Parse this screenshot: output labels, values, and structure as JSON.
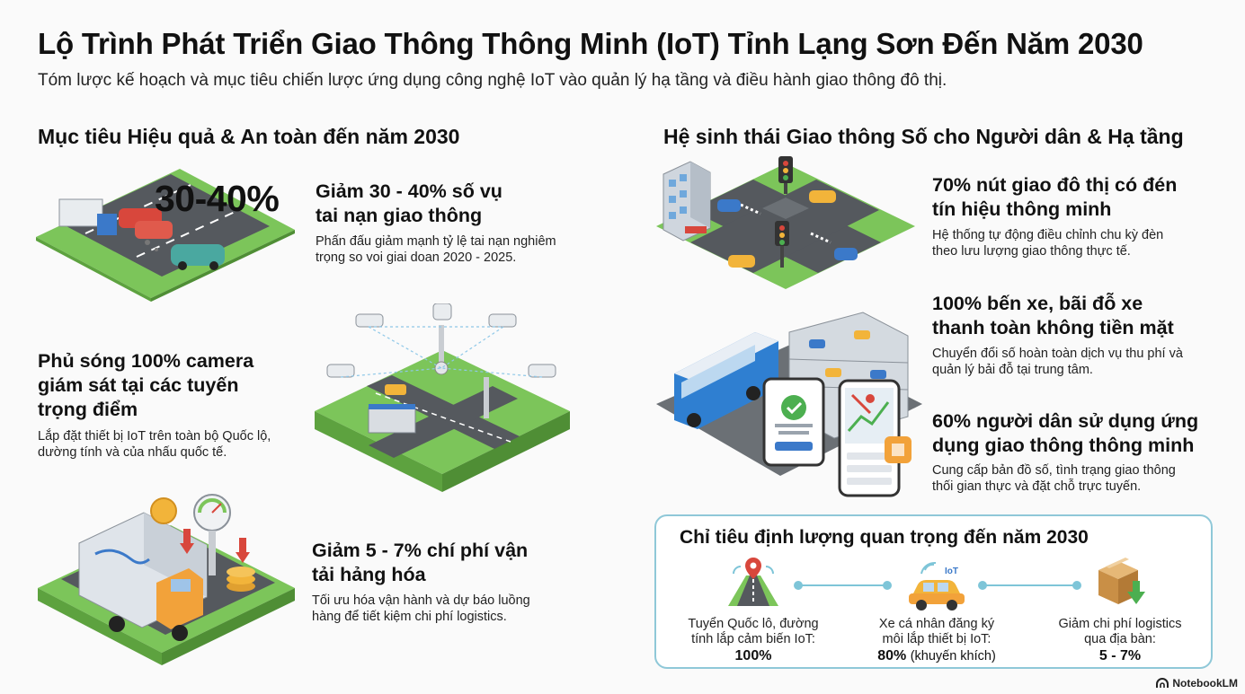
{
  "header": {
    "title": "Lộ Trình Phát Triển Giao Thông Thông Minh (IoT) Tỉnh Lạng Sơn Đến Năm 2030",
    "subtitle": "Tóm lược kế hoạch và mục tiêu chiến lược ứng dụng công nghệ IoT vào quản lý hạ tầng và điều hành giao thông đô thị."
  },
  "left_section": {
    "heading": "Mục tiêu Hiệu quả & An toàn đến năm 2030",
    "accident": {
      "big_number": "30-40%",
      "title_line1": "Giảm 30 - 40% số vụ",
      "title_line2": "tai nạn giao thông",
      "desc_line1": "Phấn đấu giảm mạnh tỷ lệ tai nạn nghiêm",
      "desc_line2": "trọng so voi giai doan 2020 - 2025."
    },
    "camera": {
      "title_line1": "Phủ sóng 100% camera",
      "title_line2": "giám sát tại các tuyến",
      "title_line3": "trọng điểm",
      "desc_line1": "Lắp đặt thiết bị IoT trên toàn bộ Quốc lộ,",
      "desc_line2": "dường tính và của nhấu quốc tế."
    },
    "logistics": {
      "title_line1": "Giảm 5 - 7% chí phí vận",
      "title_line2": "tải hảng hóa",
      "desc_line1": "Tối ưu hóa vận hành và dự báo luồng",
      "desc_line2": "hàng để tiết kiệm chi phí logistics."
    }
  },
  "right_section": {
    "heading": "Hệ sinh thái Giao thông Số cho Người dân & Hạ tầng",
    "signals": {
      "title_line1": "70% nút giao đô thị có đén",
      "title_line2": "tín hiệu thông minh",
      "desc_line1": "Hệ thống tự động điều chỉnh chu kỳ đèn",
      "desc_line2": "theo lưu lượng giao thông thực tế."
    },
    "parking": {
      "title_line1": "100% bến xe, bãi đỗ xe",
      "title_line2": "thanh toàn không tiền mặt",
      "desc_line1": "Chuyển đổi số hoàn toàn dịch vụ thu phí và",
      "desc_line2": "quản lý bải đỗ tại trung tâm."
    },
    "app": {
      "title_line1": "60% người dân sử dụng ứng",
      "title_line2": "dụng giao thông thông minh",
      "desc_line1": "Cung cấp bản đồ số, tình trạng giao thông",
      "desc_line2": "thối gian thực và đặt chỗ trực tuyến."
    }
  },
  "kpi": {
    "heading": "Chỉ tiêu định lượng quan trọng đến năm 2030",
    "items": [
      {
        "label_line1": "Tuyển Quốc lô, đường",
        "label_line2": "tính lắp cảm biến IoT:",
        "value": "100%",
        "note": ""
      },
      {
        "label_line1": "Xe cá nhân đăng ký",
        "label_line2": "môi lắp thiết bị IoT:",
        "value": "80%",
        "note": "(khuyến khích)"
      },
      {
        "label_line1": "Giảm chi phí logistics",
        "label_line2": "qua địa bàn:",
        "value": "5 - 7%",
        "note": ""
      }
    ],
    "iot_tag": "IoT"
  },
  "footer": {
    "brand": "NotebookLM"
  },
  "colors": {
    "grass": "#7cc55a",
    "road": "#55595e",
    "accent_blue": "#7ec5d8",
    "taxi": "#f2b43a"
  }
}
